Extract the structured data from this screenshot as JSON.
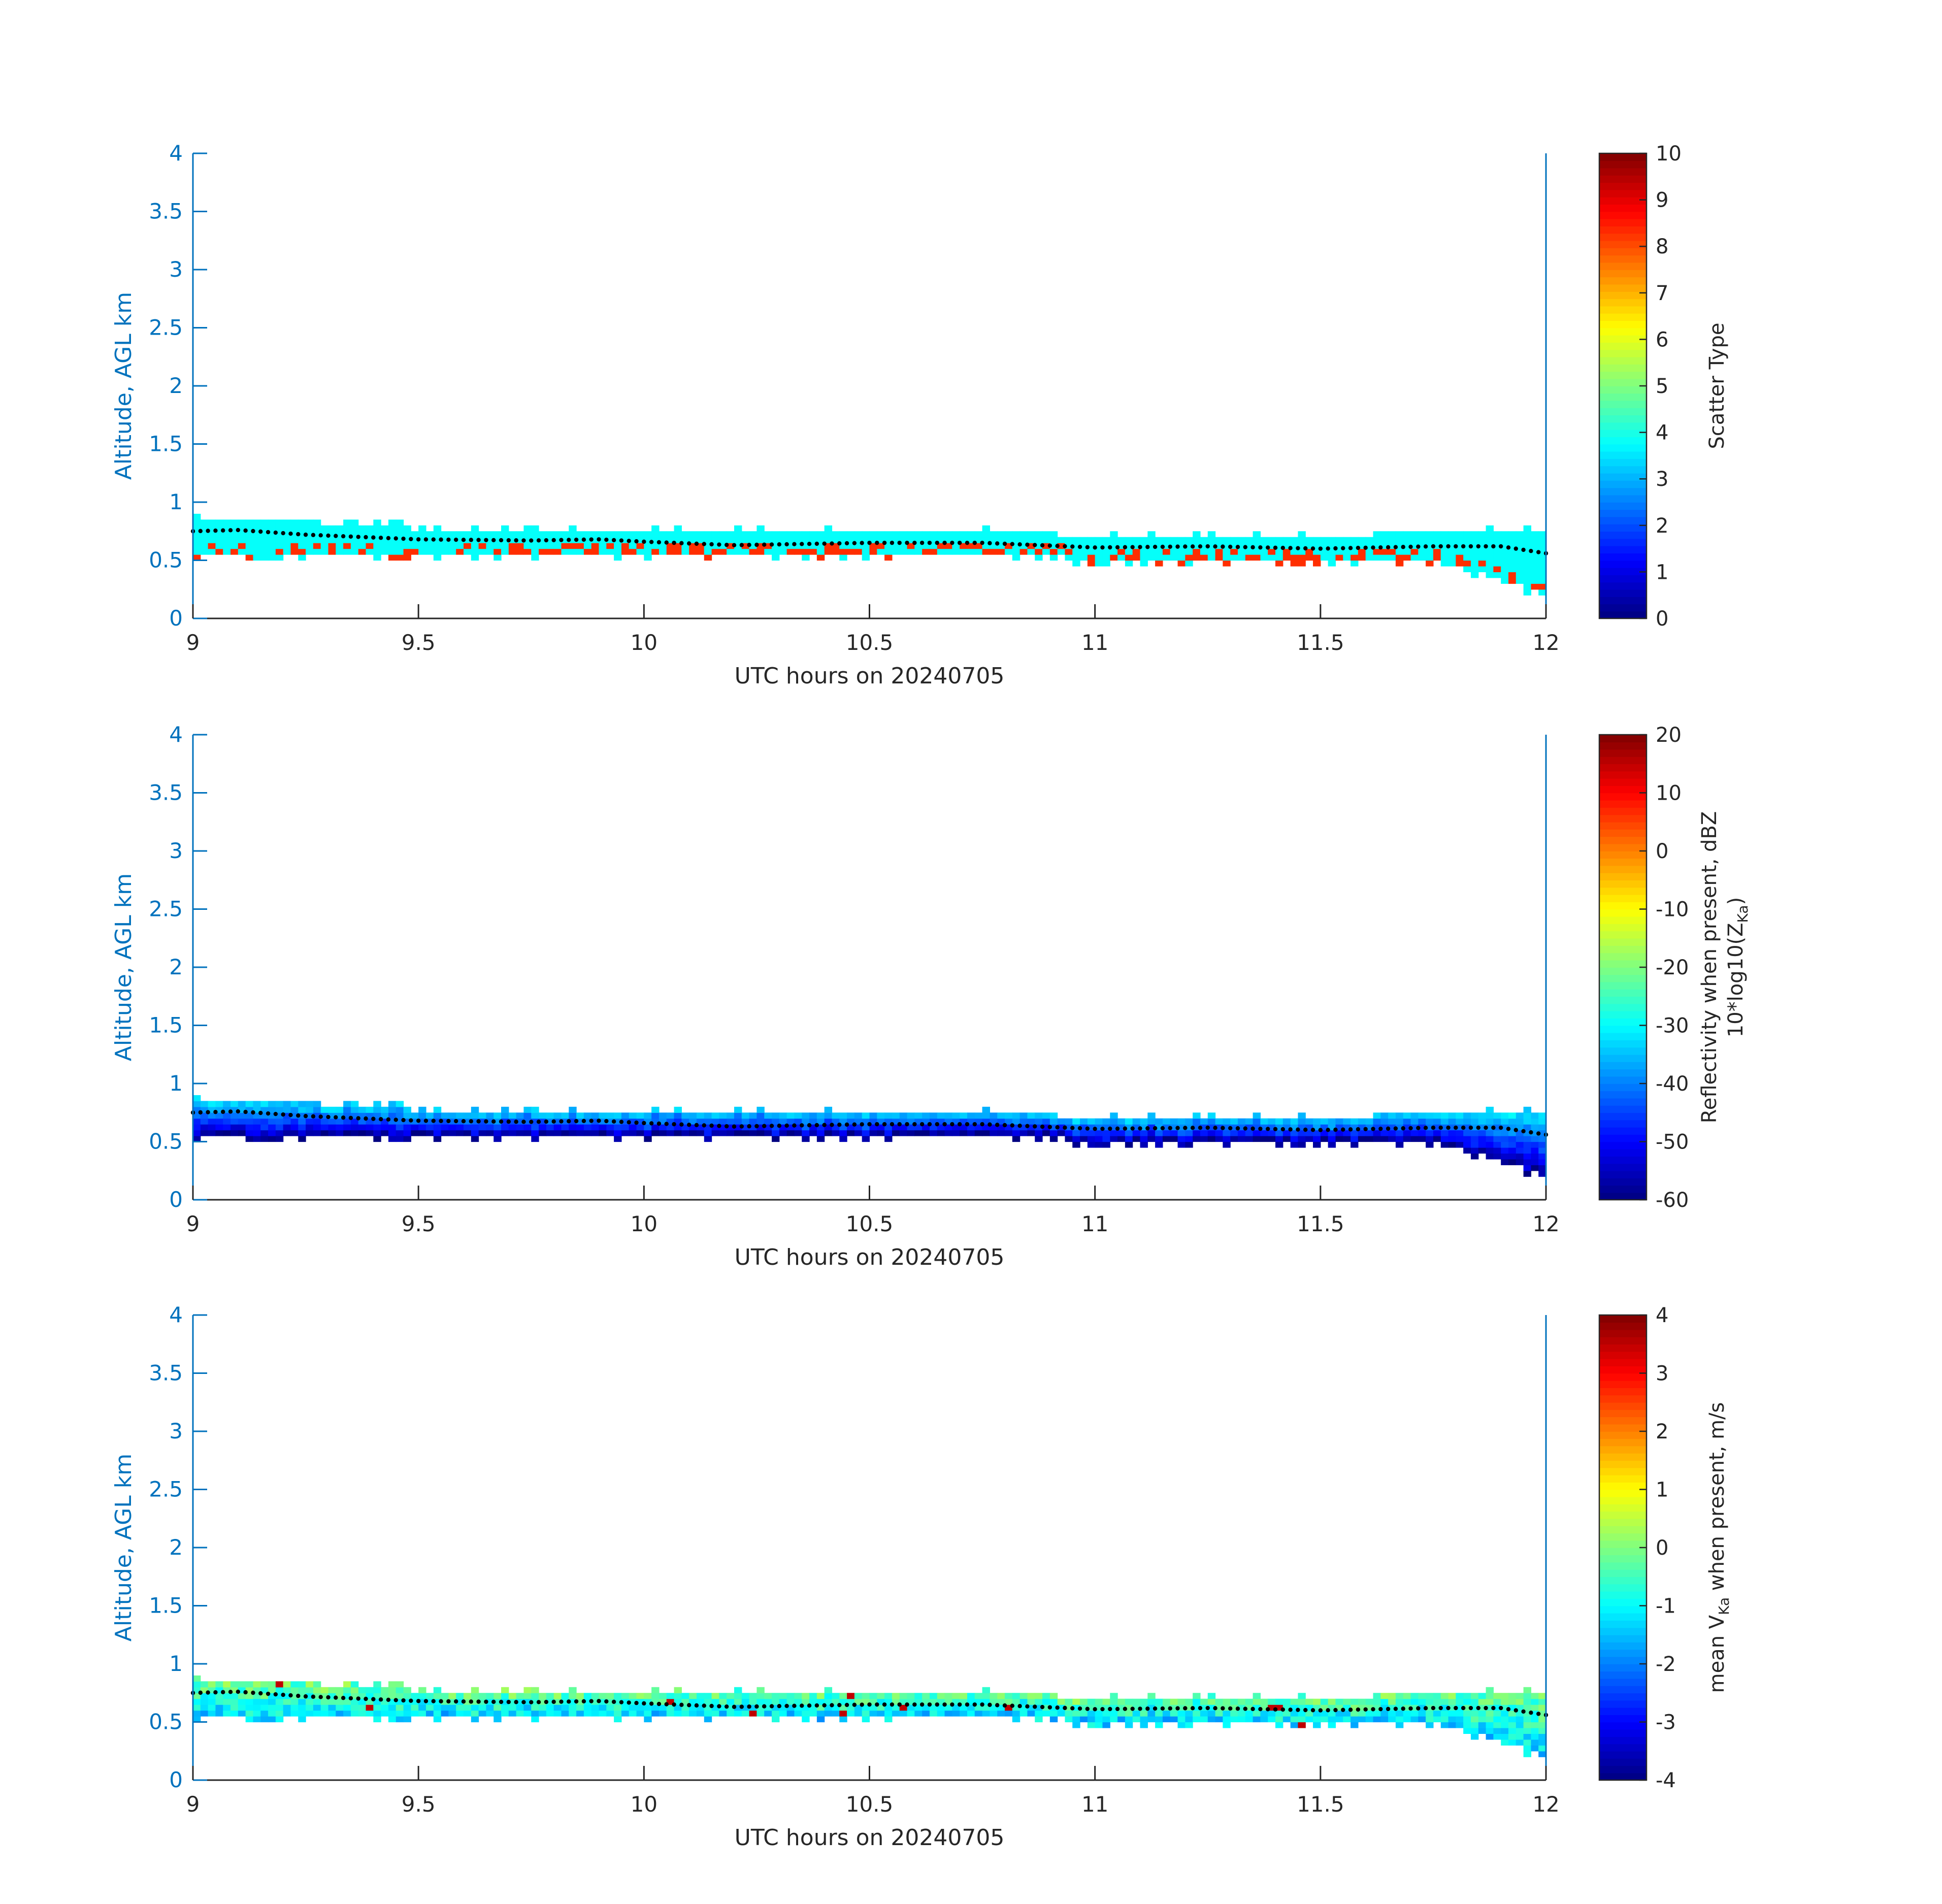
{
  "colors": {
    "axis_left": "#0072bd",
    "axis_bottom": "#262626",
    "mean_dots": "#000000",
    "background": "#ffffff"
  },
  "colormap": "jet",
  "chart_data": [
    {
      "type": "heatmap",
      "title": "",
      "xlabel": "UTC hours on 20240705",
      "ylabel": "Altitude, AGL km",
      "xlim": [
        9,
        12
      ],
      "ylim": [
        0,
        4
      ],
      "xticks": [
        "9",
        "9.5",
        "10",
        "10.5",
        "11",
        "11.5",
        "12"
      ],
      "yticks": [
        "0",
        "0.5",
        "1",
        "1.5",
        "2",
        "2.5",
        "3",
        "3.5",
        "4"
      ],
      "colorbar": {
        "label": "Scatter Type",
        "label_line2": "",
        "clim": [
          0,
          10
        ],
        "ticks": [
          "0",
          "1",
          "2",
          "3",
          "4",
          "5",
          "6",
          "7",
          "8",
          "9",
          "10"
        ]
      },
      "layer": {
        "x": [
          9.0,
          9.25,
          9.5,
          9.75,
          10.0,
          10.25,
          10.5,
          10.75,
          11.0,
          11.25,
          11.5,
          11.75,
          11.9,
          12.0
        ],
        "top": [
          0.88,
          0.83,
          0.77,
          0.76,
          0.76,
          0.76,
          0.77,
          0.76,
          0.71,
          0.7,
          0.7,
          0.75,
          0.77,
          0.77
        ],
        "bottom": [
          0.55,
          0.55,
          0.55,
          0.55,
          0.55,
          0.55,
          0.55,
          0.55,
          0.52,
          0.52,
          0.52,
          0.5,
          0.35,
          0.2
        ],
        "main_value": 3.8,
        "base_value": 8.3,
        "base_thickness": 0.07
      }
    },
    {
      "type": "heatmap",
      "title": "",
      "xlabel": "UTC hours on 20240705",
      "ylabel": "Altitude, AGL km",
      "xlim": [
        9,
        12
      ],
      "ylim": [
        0,
        4
      ],
      "xticks": [
        "9",
        "9.5",
        "10",
        "10.5",
        "11",
        "11.5",
        "12"
      ],
      "yticks": [
        "0",
        "0.5",
        "1",
        "1.5",
        "2",
        "2.5",
        "3",
        "3.5",
        "4"
      ],
      "colorbar": {
        "label": "Reflectivity when present, dBZ",
        "label_line2": "10*log10(Z",
        "label_line2_sub": "Ka",
        "label_line2_end": ")",
        "clim": [
          -60,
          20
        ],
        "ticks": [
          "-60",
          "-50",
          "-40",
          "-30",
          "-20",
          "-10",
          "0",
          "10",
          "20"
        ]
      },
      "layer": {
        "x": [
          9.0,
          9.25,
          9.5,
          9.75,
          10.0,
          10.25,
          10.5,
          10.75,
          11.0,
          11.25,
          11.5,
          11.75,
          11.9,
          12.0
        ],
        "top": [
          0.88,
          0.83,
          0.77,
          0.76,
          0.76,
          0.76,
          0.77,
          0.76,
          0.71,
          0.7,
          0.7,
          0.75,
          0.77,
          0.77
        ],
        "bottom": [
          0.55,
          0.55,
          0.55,
          0.55,
          0.55,
          0.55,
          0.55,
          0.55,
          0.52,
          0.52,
          0.52,
          0.5,
          0.35,
          0.2
        ],
        "top_value": -30,
        "bottom_value": -58
      }
    },
    {
      "type": "heatmap",
      "title": "",
      "xlabel": "UTC hours on 20240705",
      "ylabel": "Altitude, AGL km",
      "xlim": [
        9,
        12
      ],
      "ylim": [
        0,
        4
      ],
      "xticks": [
        "9",
        "9.5",
        "10",
        "10.5",
        "11",
        "11.5",
        "12"
      ],
      "yticks": [
        "0",
        "0.5",
        "1",
        "1.5",
        "2",
        "2.5",
        "3",
        "3.5",
        "4"
      ],
      "colorbar": {
        "label": "mean V",
        "label_sub": "Ka",
        "label_end": " when present, m/s",
        "label_line2": "",
        "clim": [
          -4,
          4
        ],
        "ticks": [
          "-4",
          "-3",
          "-2",
          "-1",
          "0",
          "1",
          "2",
          "3",
          "4"
        ]
      },
      "layer": {
        "x": [
          9.0,
          9.25,
          9.5,
          9.75,
          10.0,
          10.25,
          10.5,
          10.75,
          11.0,
          11.25,
          11.5,
          11.75,
          11.9,
          12.0
        ],
        "top": [
          0.88,
          0.83,
          0.77,
          0.76,
          0.76,
          0.76,
          0.77,
          0.76,
          0.71,
          0.7,
          0.7,
          0.75,
          0.77,
          0.77
        ],
        "bottom": [
          0.55,
          0.55,
          0.55,
          0.55,
          0.55,
          0.55,
          0.55,
          0.55,
          0.52,
          0.52,
          0.52,
          0.5,
          0.35,
          0.2
        ],
        "top_value": 0.0,
        "bottom_value": -1.3
      }
    }
  ],
  "mean_height": {
    "x": [
      9.0,
      9.1,
      9.25,
      9.5,
      9.75,
      9.9,
      10.0,
      10.2,
      10.5,
      10.75,
      11.0,
      11.25,
      11.5,
      11.75,
      11.9,
      12.0
    ],
    "y": [
      0.75,
      0.76,
      0.72,
      0.68,
      0.67,
      0.68,
      0.66,
      0.63,
      0.65,
      0.65,
      0.61,
      0.62,
      0.6,
      0.62,
      0.62,
      0.56
    ]
  }
}
